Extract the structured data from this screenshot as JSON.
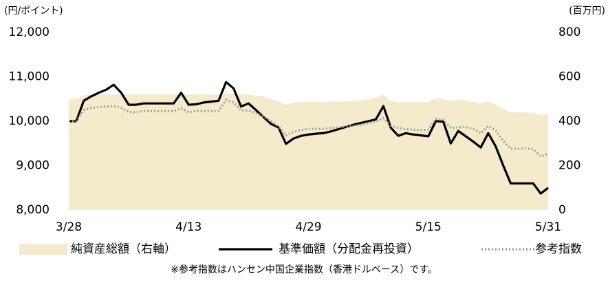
{
  "chart_data": {
    "type": "line",
    "y_unit_label": "(円/ポイント)",
    "y2_unit_label": "(百万円)",
    "footnote": "※参考指数はハンセン中国企業指数（香港ドルベース）です。",
    "categories": [
      "3/28",
      null,
      null,
      null,
      null,
      null,
      null,
      null,
      null,
      null,
      null,
      null,
      null,
      null,
      null,
      null,
      "4/13",
      null,
      null,
      null,
      null,
      null,
      null,
      null,
      null,
      null,
      null,
      null,
      null,
      null,
      null,
      null,
      "4/29",
      null,
      null,
      null,
      null,
      null,
      null,
      null,
      null,
      null,
      null,
      null,
      null,
      null,
      null,
      null,
      "5/15",
      null,
      null,
      null,
      null,
      null,
      null,
      null,
      null,
      null,
      null,
      null,
      null,
      null,
      null,
      null,
      "5/31"
    ],
    "ylim": [
      8000,
      12000
    ],
    "yticks": [
      {
        "value": 8000,
        "label": "8,000"
      },
      {
        "value": 9000,
        "label": "9,000"
      },
      {
        "value": 10000,
        "label": "10,000"
      },
      {
        "value": 11000,
        "label": "11,000"
      },
      {
        "value": 12000,
        "label": "12,000"
      }
    ],
    "y2lim": [
      0,
      800
    ],
    "y2ticks": [
      0,
      200,
      400,
      600,
      800
    ],
    "series": [
      {
        "name": "純資産総額（右軸）",
        "type": "area",
        "axis": "y2",
        "color": "#f3ebcc",
        "values": [
          500,
          500,
          517,
          520,
          520,
          520,
          520,
          520,
          520,
          520,
          520,
          520,
          520,
          520,
          520,
          520,
          520,
          520,
          520,
          520,
          520,
          525,
          525,
          522,
          520,
          515,
          510,
          500,
          490,
          474,
          484,
          486,
          487,
          487,
          487,
          488,
          488,
          489,
          490,
          495,
          500,
          505,
          520,
          490,
          487,
          487,
          486,
          486,
          487,
          502,
          500,
          490,
          497,
          492,
          487,
          480,
          490,
          474,
          455,
          440,
          440,
          440,
          437,
          428,
          431
        ]
      },
      {
        "name": "基準価額（分配金再投資）",
        "type": "solid",
        "color": "#000000",
        "values": [
          10000,
          10000,
          10460,
          10560,
          10640,
          10710,
          10820,
          10640,
          10370,
          10370,
          10400,
          10400,
          10400,
          10400,
          10400,
          10640,
          10370,
          10380,
          10420,
          10440,
          10460,
          10880,
          10740,
          10330,
          10400,
          10250,
          10090,
          9940,
          9860,
          9490,
          9610,
          9670,
          9700,
          9720,
          9730,
          9770,
          9820,
          9870,
          9920,
          9960,
          10000,
          10040,
          10340,
          9850,
          9670,
          9730,
          9700,
          9680,
          9660,
          10000,
          9990,
          9500,
          9780,
          9660,
          9540,
          9410,
          9730,
          9430,
          9000,
          8600,
          8600,
          8600,
          8600,
          8370,
          8500
        ]
      },
      {
        "name": "参考指数",
        "type": "dotted",
        "color": "#9a9a9a",
        "values": [
          10000,
          10000,
          10250,
          10300,
          10320,
          10330,
          10340,
          10300,
          10210,
          10200,
          10230,
          10230,
          10230,
          10230,
          10230,
          10290,
          10200,
          10230,
          10230,
          10230,
          10230,
          10480,
          10420,
          10240,
          10240,
          10180,
          10100,
          10000,
          9880,
          9680,
          9760,
          9800,
          9830,
          9830,
          9830,
          9850,
          9860,
          9880,
          9900,
          9920,
          9960,
          9990,
          10070,
          9900,
          9850,
          9820,
          9810,
          9800,
          9810,
          10050,
          10030,
          9850,
          9860,
          9870,
          9820,
          9730,
          9890,
          9790,
          9550,
          9380,
          9380,
          9390,
          9370,
          9210,
          9260
        ]
      }
    ]
  }
}
